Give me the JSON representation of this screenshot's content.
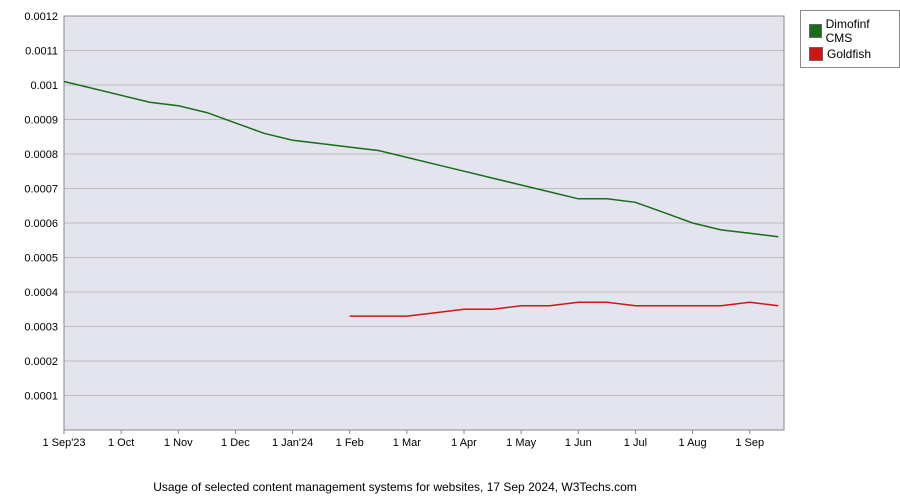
{
  "chart": {
    "type": "line",
    "background_color": "#e4e4ef",
    "border_color": "#888888",
    "grid_color": "#bcbcbc",
    "axis_label_color": "#000000",
    "axis_fontsize": 11,
    "caption": "Usage of selected content management systems for websites, 17 Sep 2024, W3Techs.com",
    "caption_fontsize": 12,
    "x": {
      "ticks": [
        "1 Sep'23",
        "1 Oct",
        "1 Nov",
        "1 Dec",
        "1 Jan'24",
        "1 Feb",
        "1 Mar",
        "1 Apr",
        "1 May",
        "1 Jun",
        "1 Jul",
        "1 Aug",
        "1 Sep"
      ]
    },
    "y": {
      "min": 0,
      "max": 0.0012,
      "tick_step": 0.0001,
      "ticks": [
        "0.0001",
        "0.0002",
        "0.0003",
        "0.0004",
        "0.0005",
        "0.0006",
        "0.0007",
        "0.0008",
        "0.0009",
        "0.001",
        "0.0011",
        "0.0012"
      ]
    },
    "series": [
      {
        "name": "Dimofinf CMS",
        "color": "#1a6b1a",
        "line_width": 1.5,
        "data": [
          [
            0,
            0.00101
          ],
          [
            0.5,
            0.00099
          ],
          [
            1,
            0.00097
          ],
          [
            1.5,
            0.00095
          ],
          [
            2,
            0.00094
          ],
          [
            2.5,
            0.00092
          ],
          [
            3,
            0.00089
          ],
          [
            3.5,
            0.00086
          ],
          [
            4,
            0.00084
          ],
          [
            4.5,
            0.00083
          ],
          [
            5,
            0.00082
          ],
          [
            5.5,
            0.00081
          ],
          [
            6,
            0.00079
          ],
          [
            6.5,
            0.00077
          ],
          [
            7,
            0.00075
          ],
          [
            7.5,
            0.00073
          ],
          [
            8,
            0.00071
          ],
          [
            8.5,
            0.00069
          ],
          [
            9,
            0.00067
          ],
          [
            9.5,
            0.00067
          ],
          [
            10,
            0.00066
          ],
          [
            10.5,
            0.00063
          ],
          [
            11,
            0.0006
          ],
          [
            11.5,
            0.00058
          ],
          [
            12,
            0.00057
          ],
          [
            12.5,
            0.00056
          ]
        ]
      },
      {
        "name": "Goldfish",
        "color": "#d01515",
        "line_width": 1.5,
        "data": [
          [
            5,
            0.00033
          ],
          [
            5.5,
            0.00033
          ],
          [
            6,
            0.00033
          ],
          [
            6.5,
            0.00034
          ],
          [
            7,
            0.00035
          ],
          [
            7.5,
            0.00035
          ],
          [
            8,
            0.00036
          ],
          [
            8.5,
            0.00036
          ],
          [
            9,
            0.00037
          ],
          [
            9.5,
            0.00037
          ],
          [
            10,
            0.00036
          ],
          [
            10.5,
            0.00036
          ],
          [
            11,
            0.00036
          ],
          [
            11.5,
            0.00036
          ],
          [
            12,
            0.00037
          ],
          [
            12.5,
            0.00036
          ]
        ]
      }
    ],
    "legend": {
      "items": [
        {
          "label": "Dimofinf CMS",
          "color": "#1a6b1a"
        },
        {
          "label": "Goldfish",
          "color": "#d01515"
        }
      ]
    }
  }
}
